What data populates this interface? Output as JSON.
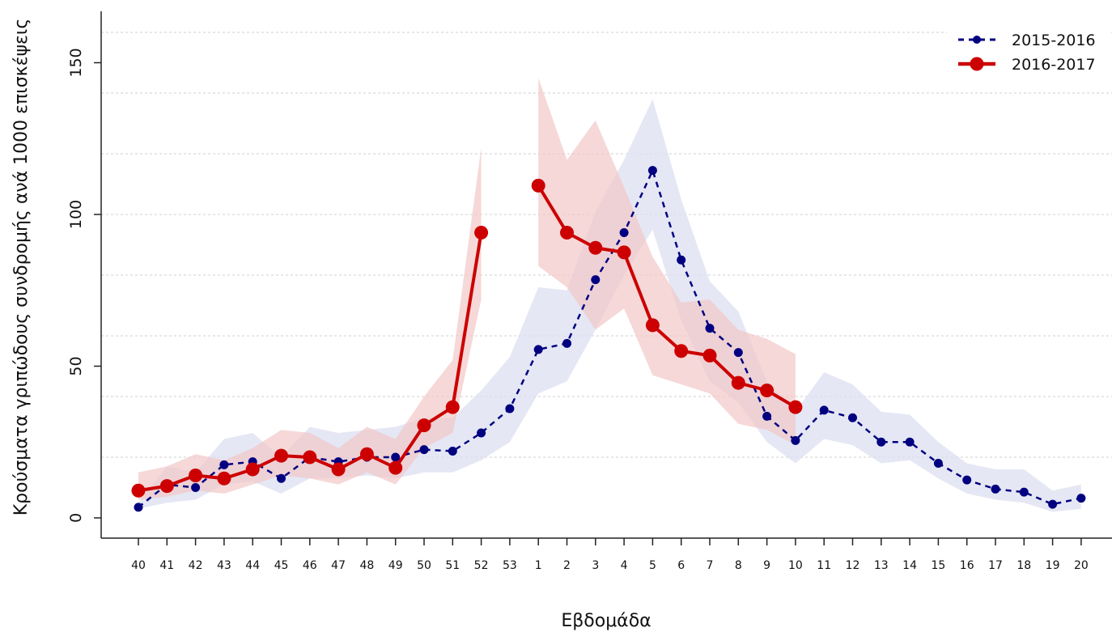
{
  "chart_data": {
    "type": "line",
    "title": "",
    "xlabel": "Εβδομάδα",
    "ylabel": "Κρούσματα γριπώδους συνδρομής ανά 1000 επισκέψεις",
    "ylim": [
      0,
      160
    ],
    "yticks": [
      "0",
      "50",
      "100",
      "150"
    ],
    "grid": true,
    "legend_position": "top-right",
    "x": [
      "40",
      "41",
      "42",
      "43",
      "44",
      "45",
      "46",
      "47",
      "48",
      "49",
      "50",
      "51",
      "52",
      "53",
      "1",
      "2",
      "3",
      "4",
      "5",
      "6",
      "7",
      "8",
      "9",
      "10",
      "11",
      "12",
      "13",
      "14",
      "15",
      "16",
      "17",
      "18",
      "19",
      "20"
    ],
    "series": [
      {
        "name": "2015-2016",
        "color": "#000080",
        "band_color": "#dcdff0",
        "line_style": "dashed",
        "values": [
          3.5,
          11,
          10,
          17.5,
          18.5,
          13,
          20,
          18.5,
          20,
          20,
          22.5,
          22,
          28,
          36,
          55.5,
          57.5,
          78.5,
          94,
          114.5,
          85,
          62.5,
          54.5,
          33.5,
          25.5,
          35.5,
          33,
          25,
          25,
          18,
          12.5,
          9.5,
          8.5,
          4.5,
          6.5
        ],
        "lower": [
          3,
          5,
          6,
          11,
          12,
          8,
          13,
          13,
          14,
          13,
          15,
          15,
          19,
          25,
          41,
          45,
          62,
          80,
          95,
          65,
          45,
          38,
          25,
          18,
          26,
          24,
          18,
          19,
          13,
          8,
          6,
          5,
          2,
          3
        ],
        "upper": [
          5,
          17,
          15,
          26,
          28,
          20,
          30,
          28,
          29,
          30,
          33,
          33,
          42,
          53,
          76,
          75,
          101,
          118,
          138,
          105,
          78,
          68,
          45,
          35,
          48,
          44,
          35,
          34,
          25,
          18,
          16,
          16,
          9,
          11
        ]
      },
      {
        "name": "2016-2017",
        "color": "#cc0000",
        "band_color": "#f2c8c8",
        "line_style": "solid",
        "values": [
          9,
          10.5,
          14,
          13,
          16,
          20.5,
          20,
          16,
          21,
          16.5,
          30.5,
          36.5,
          94,
          null,
          109.5,
          94,
          89,
          87.5,
          63.5,
          55,
          53.5,
          44.5,
          42,
          36.5,
          null,
          null,
          null,
          null,
          null,
          null,
          null,
          null,
          null,
          null
        ],
        "lower": [
          6,
          7,
          9,
          8,
          11,
          14,
          13,
          11,
          15,
          11,
          23,
          28,
          72,
          null,
          83,
          76,
          62,
          69,
          47,
          44,
          41,
          31,
          29,
          24,
          null,
          null,
          null,
          null,
          null,
          null,
          null,
          null,
          null,
          null
        ],
        "upper": [
          15,
          17,
          21,
          19,
          23,
          29,
          28,
          23,
          30,
          26,
          40,
          52,
          122,
          null,
          145,
          118,
          131,
          109,
          86,
          71,
          72,
          62,
          59,
          54,
          null,
          null,
          null,
          null,
          null,
          null,
          null,
          null,
          null,
          null
        ]
      }
    ]
  }
}
